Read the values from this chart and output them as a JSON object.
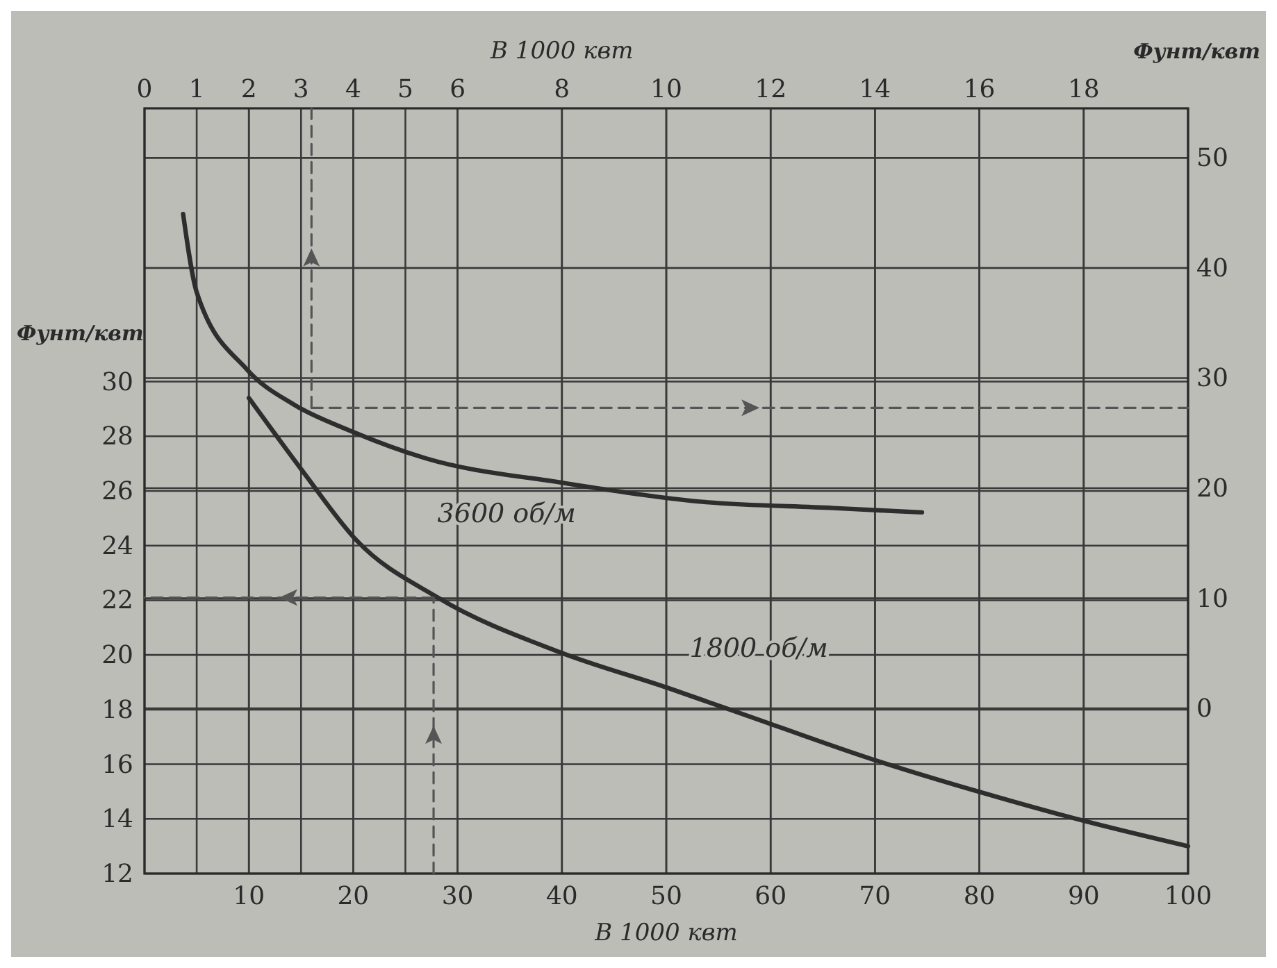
{
  "chart_data": {
    "type": "line",
    "xlabel": "В 1000 квт",
    "x2label": "В 1000 квт",
    "ylabel": "Фунт/квт",
    "y2label": "Фунт/квт",
    "xlim": [
      0,
      100
    ],
    "xticks": [
      10,
      20,
      30,
      40,
      50,
      60,
      70,
      80,
      90,
      100
    ],
    "x2lim": [
      0,
      20
    ],
    "x2ticks": [
      0,
      1,
      2,
      3,
      4,
      5,
      6,
      8,
      10,
      12,
      14,
      16,
      18
    ],
    "ylim": [
      12,
      40
    ],
    "yticks": [
      12,
      14,
      16,
      18,
      20,
      22,
      24,
      26,
      28,
      30
    ],
    "y2lim": [
      -15,
      54.5
    ],
    "y2ticks": [
      0,
      10,
      20,
      30,
      40,
      50
    ],
    "grid": true,
    "legend": false,
    "marker": "none",
    "series": [
      {
        "name": "3600 об/м",
        "color": "#2e2e2e",
        "axis": "y2",
        "x": [
          3.7,
          5.0,
          9.8,
          14.3,
          19.5,
          27,
          40,
          53,
          66,
          74.5
        ],
        "values": [
          44.9,
          37.8,
          30.8,
          27.6,
          25.3,
          22.7,
          20.5,
          18.8,
          18.2,
          17.8
        ]
      },
      {
        "name": "1800 об/м",
        "color": "#2e2e2e",
        "x": [
          10.0,
          15.2,
          20.3,
          28.1,
          39.8,
          50.1,
          59.8,
          69.6,
          79.9,
          90.3,
          100
        ],
        "values": [
          29.4,
          26.7,
          24.2,
          22.1,
          20.1,
          18.8,
          17.5,
          16.2,
          15.0,
          13.9,
          13.0
        ]
      },
      {
        "color": "#555555",
        "axis": "y2",
        "line_style": "dashed",
        "x": [
          16,
          16
        ],
        "values": [
          27.3,
          54.5
        ]
      },
      {
        "color": "#555555",
        "axis": "y2",
        "line_style": "dashed",
        "x": [
          16,
          100
        ],
        "values": [
          27.3,
          27.3
        ]
      },
      {
        "color": "#555555",
        "line_style": "dashed",
        "x": [
          27.7,
          27.7
        ],
        "values": [
          12,
          22.1
        ]
      },
      {
        "color": "#555555",
        "line_style": "dashed",
        "x": [
          27.7,
          0
        ],
        "values": [
          22.1,
          22.1
        ]
      }
    ]
  }
}
